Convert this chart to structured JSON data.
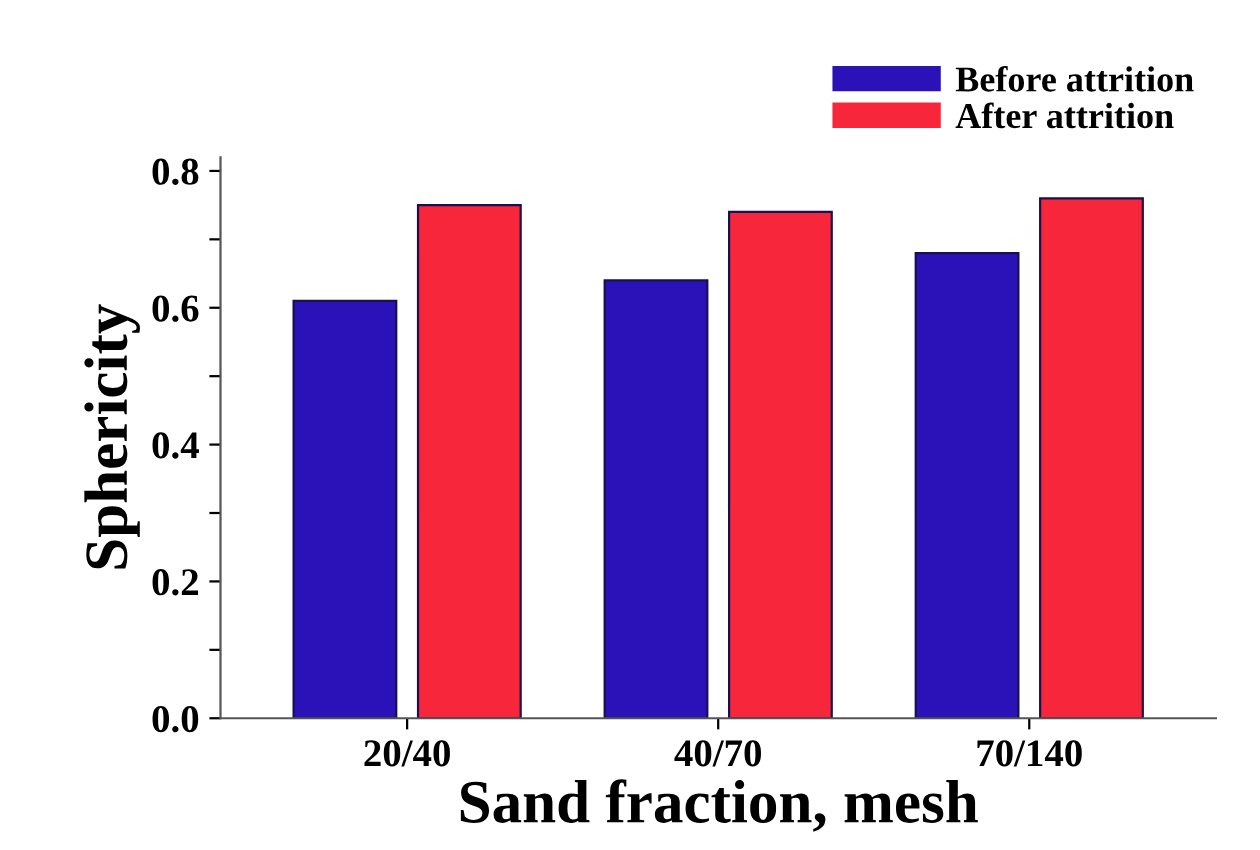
{
  "chart_data": {
    "type": "bar",
    "xlabel": "Sand fraction, mesh",
    "ylabel": "Sphericity",
    "categories": [
      "20/40",
      "40/70",
      "70/140"
    ],
    "series": [
      {
        "name": "Before attrition",
        "color": "#2a12b8",
        "values": [
          0.61,
          0.64,
          0.68
        ]
      },
      {
        "name": "After attrition",
        "color": "#f8263a",
        "values": [
          0.75,
          0.74,
          0.76
        ]
      }
    ],
    "ylim": [
      0,
      0.82
    ],
    "yticks": [
      {
        "value": 0,
        "label": "0.0"
      },
      {
        "value": 0.1,
        "label": null
      },
      0.2,
      {
        "value": 0.3,
        "label": null
      },
      0.4,
      {
        "value": 0.5,
        "label": null
      },
      0.6,
      {
        "value": 0.7,
        "label": null
      },
      0.8
    ],
    "legend": "top right",
    "grid": false
  }
}
